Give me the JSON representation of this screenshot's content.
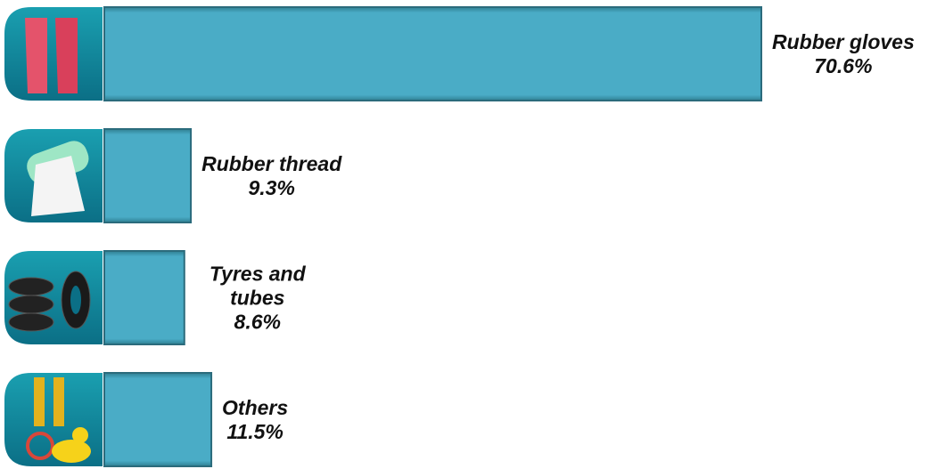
{
  "chart_data": {
    "type": "bar",
    "orientation": "horizontal",
    "categories": [
      "Rubber gloves",
      "Rubber thread",
      "Tyres and tubes",
      "Others"
    ],
    "values": [
      70.6,
      9.3,
      8.6,
      11.5
    ],
    "value_labels": [
      "70.6%",
      "9.3%",
      "8.6%",
      "11.5%"
    ],
    "color": "#4aacc6"
  }
}
